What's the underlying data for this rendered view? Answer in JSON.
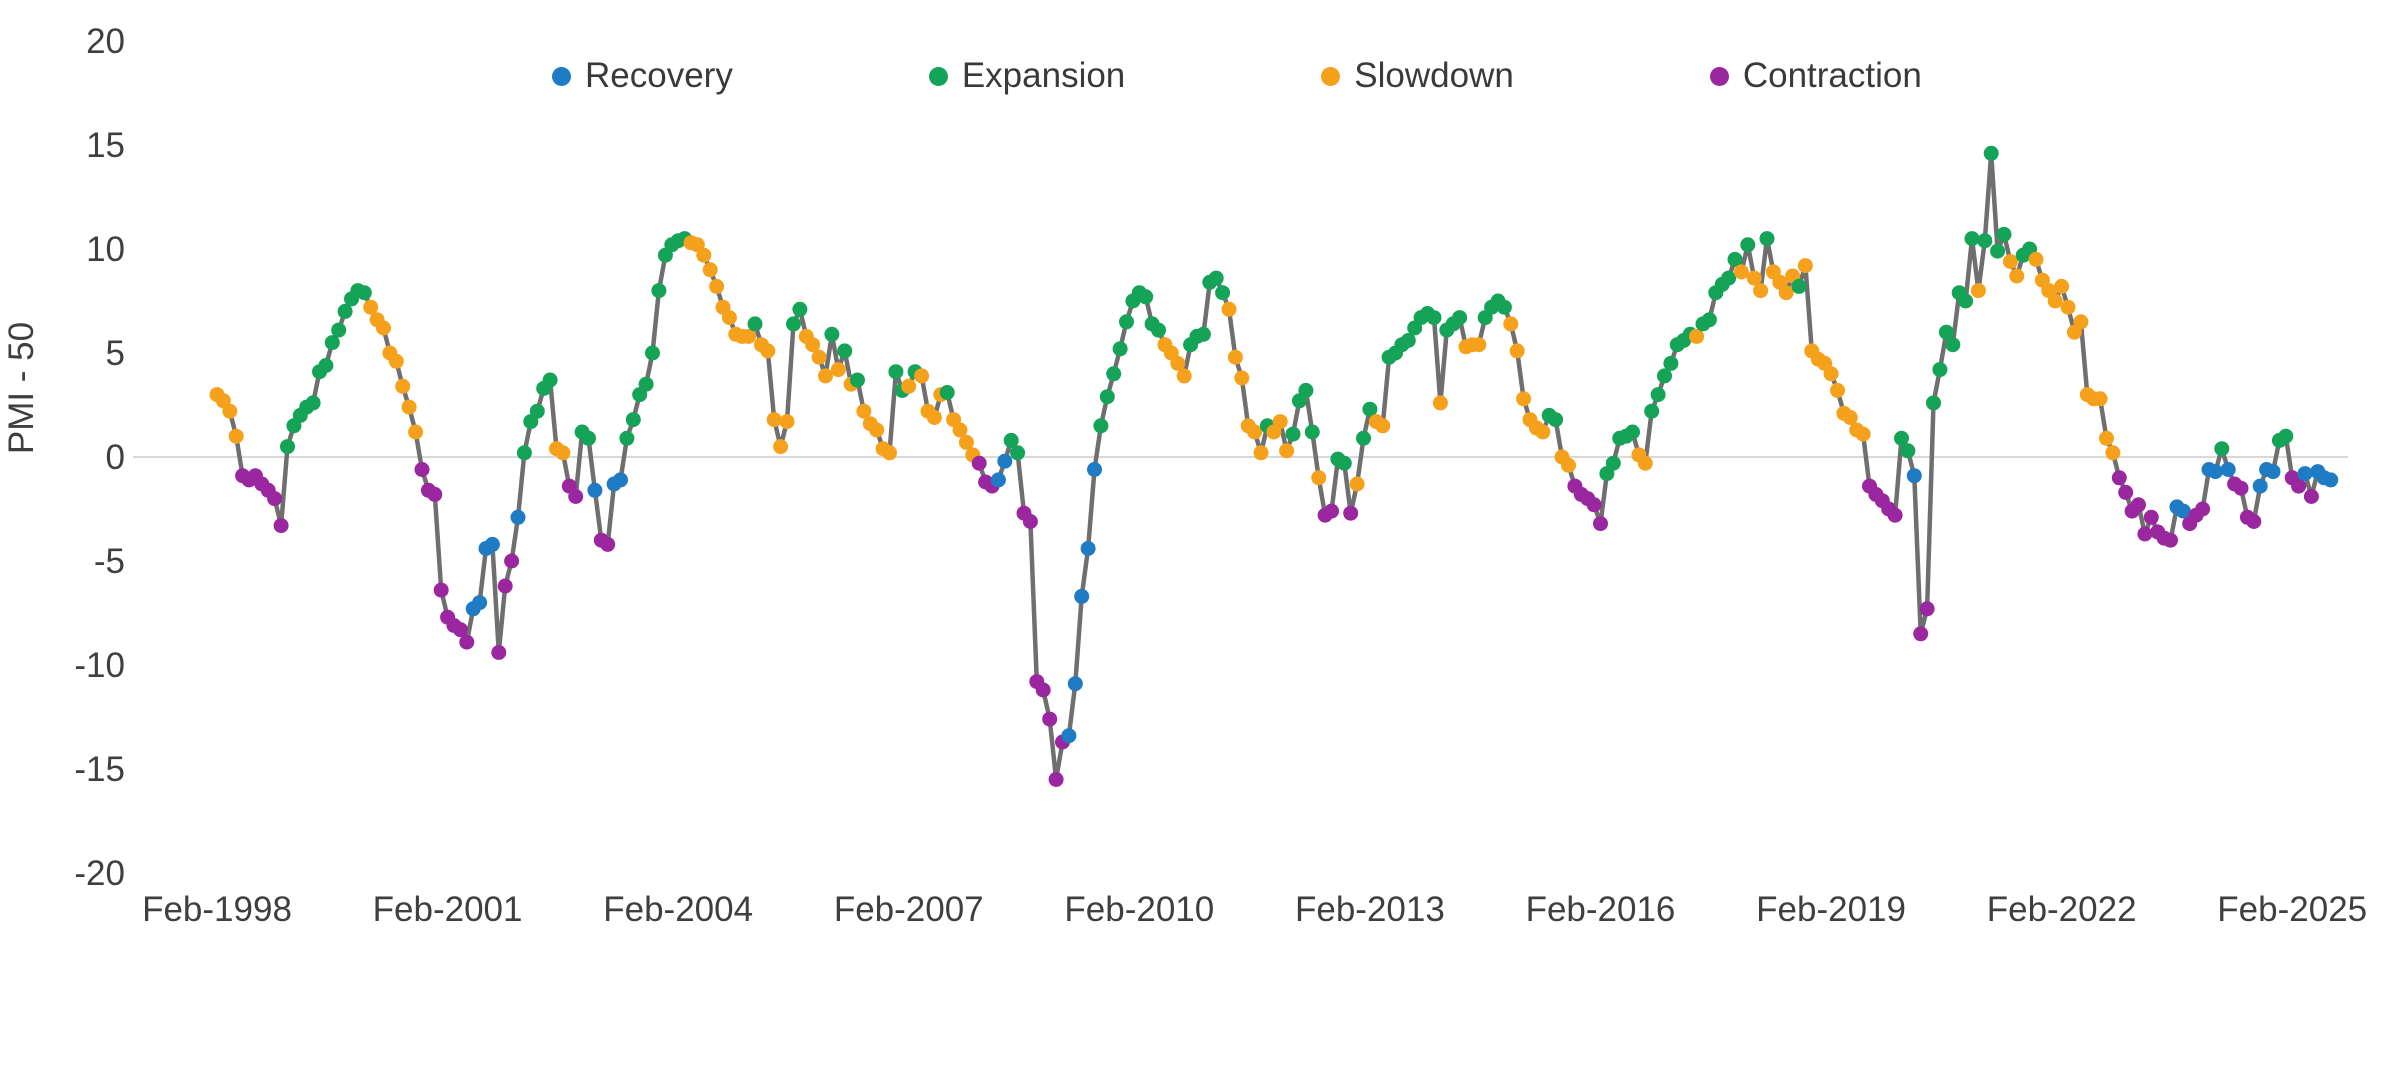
{
  "chart_data": {
    "type": "line",
    "title": "",
    "ylabel": "PMI - 50",
    "ylim": [
      -20,
      20
    ],
    "yticks": [
      20,
      15,
      10,
      5,
      0,
      -5,
      -10,
      -15,
      -20
    ],
    "grid": "horizontal zero-line only",
    "background": "#FFFFFF",
    "line_color": "#6F6F6F",
    "zero_line_color": "#D9D9D9",
    "legend": {
      "position": "top-center",
      "entries": [
        {
          "label": "Recovery",
          "color": "#1F7BC4"
        },
        {
          "label": "Expansion",
          "color": "#14A357"
        },
        {
          "label": "Slowdown",
          "color": "#F5A11C"
        },
        {
          "label": "Contraction",
          "color": "#9A27A0"
        }
      ]
    },
    "x_start_label": "Feb-1998",
    "x_frequency": "monthly",
    "x_ticks": [
      {
        "label": "Feb-1998",
        "month_index": 0
      },
      {
        "label": "Feb-2001",
        "month_index": 36
      },
      {
        "label": "Feb-2004",
        "month_index": 72
      },
      {
        "label": "Feb-2007",
        "month_index": 108
      },
      {
        "label": "Feb-2010",
        "month_index": 144
      },
      {
        "label": "Feb-2013",
        "month_index": 180
      },
      {
        "label": "Feb-2016",
        "month_index": 216
      },
      {
        "label": "Feb-2019",
        "month_index": 252
      },
      {
        "label": "Feb-2022",
        "month_index": 288
      },
      {
        "label": "Feb-2025",
        "month_index": 324
      }
    ],
    "phase_colors": {
      "R": "#1F7BC4",
      "E": "#14A357",
      "S": "#F5A11C",
      "C": "#9A27A0"
    },
    "phase_names": {
      "R": "Recovery",
      "E": "Expansion",
      "S": "Slowdown",
      "C": "Contraction"
    },
    "series": [
      [
        3.0,
        "S"
      ],
      [
        2.7,
        "S"
      ],
      [
        2.2,
        "S"
      ],
      [
        1.0,
        "S"
      ],
      [
        -0.9,
        "C"
      ],
      [
        -1.1,
        "C"
      ],
      [
        -0.9,
        "C"
      ],
      [
        -1.3,
        "C"
      ],
      [
        -1.6,
        "C"
      ],
      [
        -2.0,
        "C"
      ],
      [
        -3.3,
        "C"
      ],
      [
        0.5,
        "E"
      ],
      [
        1.5,
        "E"
      ],
      [
        2.0,
        "E"
      ],
      [
        2.4,
        "E"
      ],
      [
        2.6,
        "E"
      ],
      [
        4.1,
        "E"
      ],
      [
        4.4,
        "E"
      ],
      [
        5.5,
        "E"
      ],
      [
        6.1,
        "E"
      ],
      [
        7.0,
        "E"
      ],
      [
        7.6,
        "E"
      ],
      [
        8.0,
        "E"
      ],
      [
        7.9,
        "E"
      ],
      [
        7.2,
        "S"
      ],
      [
        6.6,
        "S"
      ],
      [
        6.2,
        "S"
      ],
      [
        5.0,
        "S"
      ],
      [
        4.6,
        "S"
      ],
      [
        3.4,
        "S"
      ],
      [
        2.4,
        "S"
      ],
      [
        1.2,
        "S"
      ],
      [
        -0.6,
        "C"
      ],
      [
        -1.6,
        "C"
      ],
      [
        -1.8,
        "C"
      ],
      [
        -6.4,
        "C"
      ],
      [
        -7.7,
        "C"
      ],
      [
        -8.1,
        "C"
      ],
      [
        -8.3,
        "C"
      ],
      [
        -8.9,
        "C"
      ],
      [
        -7.3,
        "R"
      ],
      [
        -7.0,
        "R"
      ],
      [
        -4.4,
        "R"
      ],
      [
        -4.2,
        "R"
      ],
      [
        -9.4,
        "C"
      ],
      [
        -6.2,
        "C"
      ],
      [
        -5.0,
        "C"
      ],
      [
        -2.9,
        "R"
      ],
      [
        0.2,
        "E"
      ],
      [
        1.7,
        "E"
      ],
      [
        2.2,
        "E"
      ],
      [
        3.3,
        "E"
      ],
      [
        3.7,
        "E"
      ],
      [
        0.4,
        "S"
      ],
      [
        0.2,
        "S"
      ],
      [
        -1.4,
        "C"
      ],
      [
        -1.9,
        "C"
      ],
      [
        1.2,
        "E"
      ],
      [
        0.9,
        "E"
      ],
      [
        -1.6,
        "R"
      ],
      [
        -4.0,
        "C"
      ],
      [
        -4.2,
        "C"
      ],
      [
        -1.3,
        "R"
      ],
      [
        -1.1,
        "R"
      ],
      [
        0.9,
        "E"
      ],
      [
        1.8,
        "E"
      ],
      [
        3.0,
        "E"
      ],
      [
        3.5,
        "E"
      ],
      [
        5.0,
        "E"
      ],
      [
        8.0,
        "E"
      ],
      [
        9.7,
        "E"
      ],
      [
        10.2,
        "E"
      ],
      [
        10.4,
        "E"
      ],
      [
        10.5,
        "E"
      ],
      [
        10.3,
        "S"
      ],
      [
        10.2,
        "S"
      ],
      [
        9.7,
        "S"
      ],
      [
        9.0,
        "S"
      ],
      [
        8.2,
        "S"
      ],
      [
        7.2,
        "S"
      ],
      [
        6.7,
        "S"
      ],
      [
        5.9,
        "S"
      ],
      [
        5.8,
        "S"
      ],
      [
        5.8,
        "S"
      ],
      [
        6.4,
        "E"
      ],
      [
        5.4,
        "S"
      ],
      [
        5.1,
        "S"
      ],
      [
        1.8,
        "S"
      ],
      [
        0.5,
        "S"
      ],
      [
        1.7,
        "S"
      ],
      [
        6.4,
        "E"
      ],
      [
        7.1,
        "E"
      ],
      [
        5.8,
        "S"
      ],
      [
        5.4,
        "S"
      ],
      [
        4.8,
        "S"
      ],
      [
        3.9,
        "S"
      ],
      [
        5.9,
        "E"
      ],
      [
        4.2,
        "S"
      ],
      [
        5.1,
        "E"
      ],
      [
        3.5,
        "S"
      ],
      [
        3.7,
        "E"
      ],
      [
        2.2,
        "S"
      ],
      [
        1.6,
        "S"
      ],
      [
        1.3,
        "S"
      ],
      [
        0.4,
        "S"
      ],
      [
        0.2,
        "S"
      ],
      [
        4.1,
        "E"
      ],
      [
        3.2,
        "E"
      ],
      [
        3.4,
        "S"
      ],
      [
        4.1,
        "E"
      ],
      [
        3.9,
        "S"
      ],
      [
        2.2,
        "S"
      ],
      [
        1.9,
        "S"
      ],
      [
        3.0,
        "S"
      ],
      [
        3.1,
        "E"
      ],
      [
        1.8,
        "S"
      ],
      [
        1.3,
        "S"
      ],
      [
        0.7,
        "S"
      ],
      [
        0.1,
        "S"
      ],
      [
        -0.3,
        "C"
      ],
      [
        -1.2,
        "C"
      ],
      [
        -1.4,
        "C"
      ],
      [
        -1.1,
        "R"
      ],
      [
        -0.2,
        "R"
      ],
      [
        0.8,
        "E"
      ],
      [
        0.2,
        "E"
      ],
      [
        -2.7,
        "C"
      ],
      [
        -3.1,
        "C"
      ],
      [
        -10.8,
        "C"
      ],
      [
        -11.2,
        "C"
      ],
      [
        -12.6,
        "C"
      ],
      [
        -15.5,
        "C"
      ],
      [
        -13.7,
        "C"
      ],
      [
        -13.4,
        "R"
      ],
      [
        -10.9,
        "R"
      ],
      [
        -6.7,
        "R"
      ],
      [
        -4.4,
        "R"
      ],
      [
        -0.6,
        "R"
      ],
      [
        1.5,
        "E"
      ],
      [
        2.9,
        "E"
      ],
      [
        4.0,
        "E"
      ],
      [
        5.2,
        "E"
      ],
      [
        6.5,
        "E"
      ],
      [
        7.5,
        "E"
      ],
      [
        7.9,
        "E"
      ],
      [
        7.7,
        "E"
      ],
      [
        6.4,
        "E"
      ],
      [
        6.1,
        "E"
      ],
      [
        5.4,
        "S"
      ],
      [
        5.0,
        "S"
      ],
      [
        4.5,
        "S"
      ],
      [
        3.9,
        "S"
      ],
      [
        5.4,
        "E"
      ],
      [
        5.8,
        "E"
      ],
      [
        5.9,
        "E"
      ],
      [
        8.4,
        "E"
      ],
      [
        8.6,
        "E"
      ],
      [
        7.9,
        "E"
      ],
      [
        7.1,
        "S"
      ],
      [
        4.8,
        "S"
      ],
      [
        3.8,
        "S"
      ],
      [
        1.5,
        "S"
      ],
      [
        1.2,
        "S"
      ],
      [
        0.2,
        "S"
      ],
      [
        1.5,
        "E"
      ],
      [
        1.2,
        "S"
      ],
      [
        1.7,
        "S"
      ],
      [
        0.3,
        "S"
      ],
      [
        1.1,
        "E"
      ],
      [
        2.7,
        "E"
      ],
      [
        3.2,
        "E"
      ],
      [
        1.2,
        "E"
      ],
      [
        -1.0,
        "S"
      ],
      [
        -2.8,
        "C"
      ],
      [
        -2.6,
        "C"
      ],
      [
        -0.1,
        "E"
      ],
      [
        -0.3,
        "E"
      ],
      [
        -2.7,
        "C"
      ],
      [
        -1.3,
        "S"
      ],
      [
        0.9,
        "E"
      ],
      [
        2.3,
        "E"
      ],
      [
        1.7,
        "S"
      ],
      [
        1.5,
        "S"
      ],
      [
        4.8,
        "E"
      ],
      [
        5.0,
        "E"
      ],
      [
        5.4,
        "E"
      ],
      [
        5.6,
        "E"
      ],
      [
        6.2,
        "E"
      ],
      [
        6.7,
        "E"
      ],
      [
        6.9,
        "E"
      ],
      [
        6.7,
        "E"
      ],
      [
        2.6,
        "S"
      ],
      [
        6.1,
        "E"
      ],
      [
        6.4,
        "E"
      ],
      [
        6.7,
        "E"
      ],
      [
        5.3,
        "S"
      ],
      [
        5.4,
        "S"
      ],
      [
        5.4,
        "S"
      ],
      [
        6.7,
        "E"
      ],
      [
        7.2,
        "E"
      ],
      [
        7.5,
        "E"
      ],
      [
        7.2,
        "E"
      ],
      [
        6.4,
        "S"
      ],
      [
        5.1,
        "S"
      ],
      [
        2.8,
        "S"
      ],
      [
        1.8,
        "S"
      ],
      [
        1.4,
        "S"
      ],
      [
        1.2,
        "S"
      ],
      [
        2.0,
        "E"
      ],
      [
        1.8,
        "E"
      ],
      [
        0.0,
        "S"
      ],
      [
        -0.4,
        "S"
      ],
      [
        -1.4,
        "C"
      ],
      [
        -1.8,
        "C"
      ],
      [
        -2.0,
        "C"
      ],
      [
        -2.3,
        "C"
      ],
      [
        -3.2,
        "C"
      ],
      [
        -0.8,
        "E"
      ],
      [
        -0.3,
        "E"
      ],
      [
        0.9,
        "E"
      ],
      [
        1.0,
        "E"
      ],
      [
        1.2,
        "E"
      ],
      [
        0.1,
        "S"
      ],
      [
        -0.3,
        "S"
      ],
      [
        2.2,
        "E"
      ],
      [
        3.0,
        "E"
      ],
      [
        3.9,
        "E"
      ],
      [
        4.5,
        "E"
      ],
      [
        5.4,
        "E"
      ],
      [
        5.6,
        "E"
      ],
      [
        5.9,
        "E"
      ],
      [
        5.8,
        "S"
      ],
      [
        6.4,
        "E"
      ],
      [
        6.6,
        "E"
      ],
      [
        7.9,
        "E"
      ],
      [
        8.3,
        "E"
      ],
      [
        8.6,
        "E"
      ],
      [
        9.5,
        "E"
      ],
      [
        8.9,
        "S"
      ],
      [
        10.2,
        "E"
      ],
      [
        8.6,
        "S"
      ],
      [
        8.0,
        "S"
      ],
      [
        10.5,
        "E"
      ],
      [
        8.9,
        "S"
      ],
      [
        8.4,
        "S"
      ],
      [
        7.9,
        "S"
      ],
      [
        8.7,
        "S"
      ],
      [
        8.2,
        "E"
      ],
      [
        9.2,
        "S"
      ],
      [
        5.1,
        "S"
      ],
      [
        4.7,
        "S"
      ],
      [
        4.5,
        "S"
      ],
      [
        4.0,
        "S"
      ],
      [
        3.2,
        "S"
      ],
      [
        2.1,
        "S"
      ],
      [
        1.9,
        "S"
      ],
      [
        1.3,
        "S"
      ],
      [
        1.1,
        "S"
      ],
      [
        -1.4,
        "C"
      ],
      [
        -1.8,
        "C"
      ],
      [
        -2.1,
        "C"
      ],
      [
        -2.5,
        "C"
      ],
      [
        -2.8,
        "C"
      ],
      [
        0.9,
        "E"
      ],
      [
        0.3,
        "E"
      ],
      [
        -0.9,
        "R"
      ],
      [
        -8.5,
        "C"
      ],
      [
        -7.3,
        "C"
      ],
      [
        2.6,
        "E"
      ],
      [
        4.2,
        "E"
      ],
      [
        6.0,
        "E"
      ],
      [
        5.4,
        "E"
      ],
      [
        7.9,
        "E"
      ],
      [
        7.5,
        "E"
      ],
      [
        10.5,
        "E"
      ],
      [
        8.0,
        "S"
      ],
      [
        10.4,
        "E"
      ],
      [
        14.6,
        "E"
      ],
      [
        9.9,
        "E"
      ],
      [
        10.7,
        "E"
      ],
      [
        9.4,
        "S"
      ],
      [
        8.7,
        "S"
      ],
      [
        9.7,
        "E"
      ],
      [
        10.0,
        "E"
      ],
      [
        9.5,
        "S"
      ],
      [
        8.5,
        "S"
      ],
      [
        8.0,
        "S"
      ],
      [
        7.5,
        "S"
      ],
      [
        8.2,
        "S"
      ],
      [
        7.2,
        "S"
      ],
      [
        6.0,
        "S"
      ],
      [
        6.5,
        "S"
      ],
      [
        3.0,
        "S"
      ],
      [
        2.8,
        "S"
      ],
      [
        2.8,
        "S"
      ],
      [
        0.9,
        "S"
      ],
      [
        0.2,
        "S"
      ],
      [
        -1.0,
        "C"
      ],
      [
        -1.7,
        "C"
      ],
      [
        -2.6,
        "C"
      ],
      [
        -2.3,
        "C"
      ],
      [
        -3.7,
        "C"
      ],
      [
        -2.9,
        "C"
      ],
      [
        -3.6,
        "C"
      ],
      [
        -3.9,
        "C"
      ],
      [
        -4.0,
        "C"
      ],
      [
        -2.4,
        "R"
      ],
      [
        -2.6,
        "R"
      ],
      [
        -3.2,
        "C"
      ],
      [
        -2.8,
        "C"
      ],
      [
        -2.5,
        "C"
      ],
      [
        -0.6,
        "R"
      ],
      [
        -0.7,
        "R"
      ],
      [
        0.4,
        "E"
      ],
      [
        -0.6,
        "R"
      ],
      [
        -1.3,
        "C"
      ],
      [
        -1.5,
        "C"
      ],
      [
        -2.9,
        "C"
      ],
      [
        -3.1,
        "C"
      ],
      [
        -1.4,
        "R"
      ],
      [
        -0.6,
        "R"
      ],
      [
        -0.7,
        "R"
      ],
      [
        0.8,
        "E"
      ],
      [
        1.0,
        "E"
      ],
      [
        -1.0,
        "C"
      ],
      [
        -1.4,
        "C"
      ],
      [
        -0.8,
        "R"
      ],
      [
        -1.9,
        "C"
      ],
      [
        -0.7,
        "R"
      ],
      [
        -1.0,
        "R"
      ],
      [
        -1.1,
        "R"
      ]
    ]
  }
}
